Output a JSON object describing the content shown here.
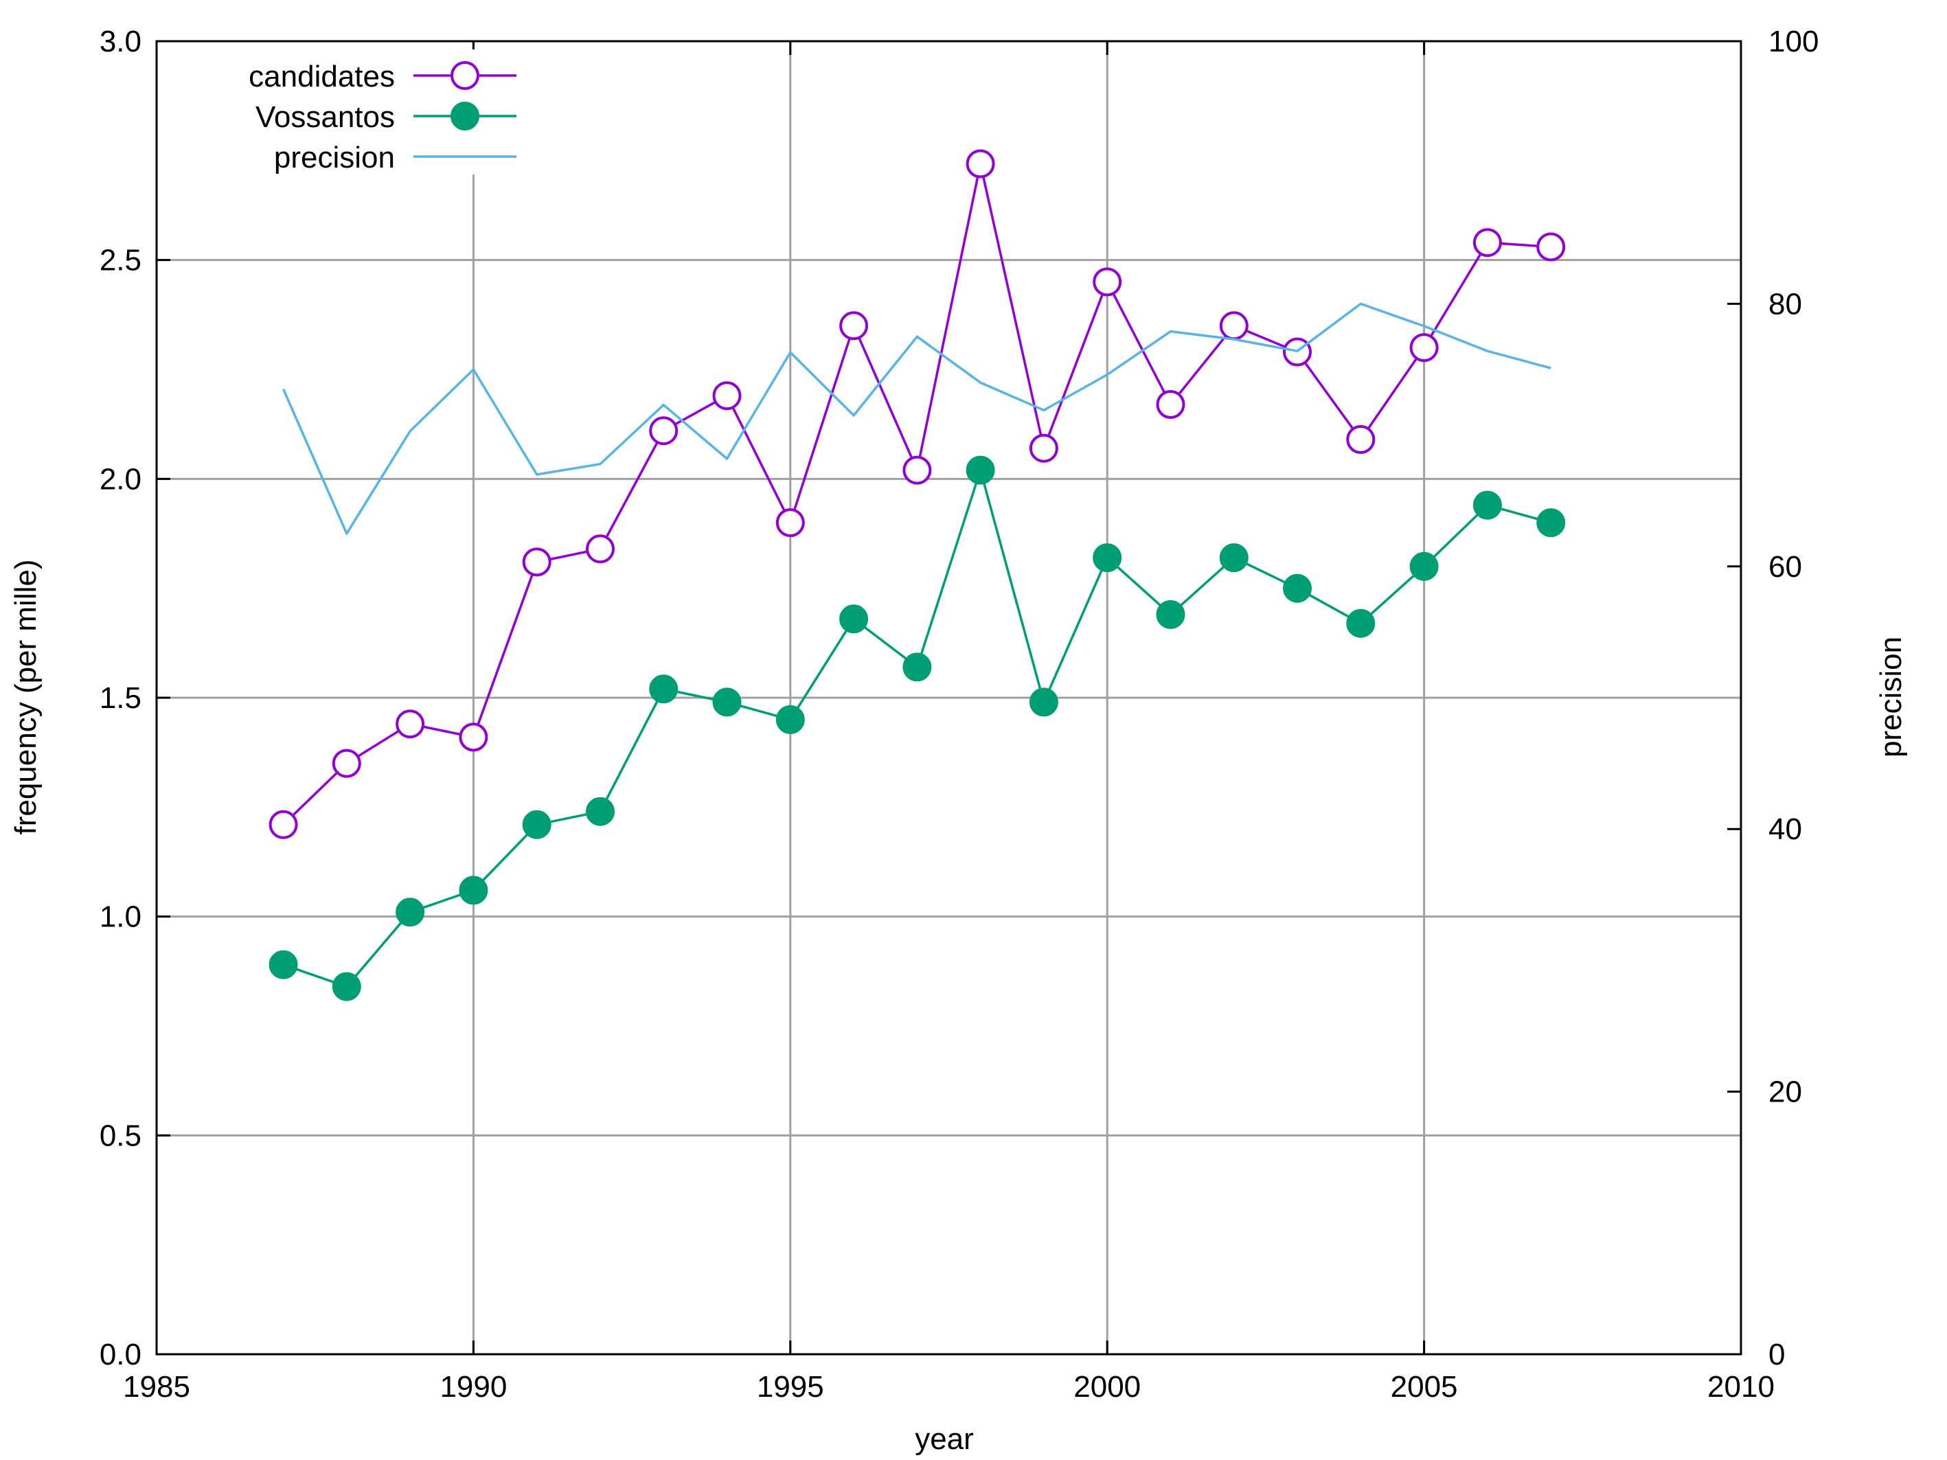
{
  "chart_data": {
    "type": "line",
    "title": "",
    "xlabel": "year",
    "ylabel": "frequency (per mille)",
    "y2label": "precision",
    "xlim": [
      1985,
      2010
    ],
    "ylim": [
      0,
      3
    ],
    "y2lim": [
      0,
      100
    ],
    "xticks": [
      1985,
      1990,
      1995,
      2000,
      2005,
      2010
    ],
    "yticks": [
      "0.0",
      "0.5",
      "1.0",
      "1.5",
      "2.0",
      "2.5",
      "3.0"
    ],
    "y2ticks": [
      0,
      20,
      40,
      60,
      80,
      100
    ],
    "grid": true,
    "legend": "top-left",
    "x": [
      1987,
      1988,
      1989,
      1990,
      1991,
      1992,
      1993,
      1994,
      1995,
      1996,
      1997,
      1998,
      1999,
      2000,
      2001,
      2002,
      2003,
      2004,
      2005,
      2006,
      2007
    ],
    "series": [
      {
        "name": "candidates",
        "axis": "left",
        "marker": "open-circle",
        "color": "#9400D3",
        "values": [
          1.21,
          1.35,
          1.44,
          1.41,
          1.81,
          1.84,
          2.11,
          2.19,
          1.9,
          2.35,
          2.02,
          2.72,
          2.07,
          2.45,
          2.17,
          2.35,
          2.29,
          2.09,
          2.3,
          2.54,
          2.53
        ]
      },
      {
        "name": "Vossantos",
        "axis": "left",
        "marker": "filled-circle",
        "color": "#009E73",
        "values": [
          0.89,
          0.84,
          1.01,
          1.06,
          1.21,
          1.24,
          1.52,
          1.49,
          1.45,
          1.68,
          1.57,
          2.02,
          1.49,
          1.82,
          1.69,
          1.82,
          1.75,
          1.67,
          1.8,
          1.94,
          1.9
        ]
      },
      {
        "name": "precision",
        "axis": "right",
        "marker": "none",
        "color": "#56B4E9",
        "values": [
          73.5,
          62.5,
          70.3,
          75.0,
          67.0,
          67.8,
          72.3,
          68.2,
          76.3,
          71.5,
          77.5,
          74.0,
          71.9,
          74.6,
          77.9,
          77.3,
          76.4,
          80.0,
          78.3,
          76.4,
          75.1
        ]
      }
    ]
  }
}
